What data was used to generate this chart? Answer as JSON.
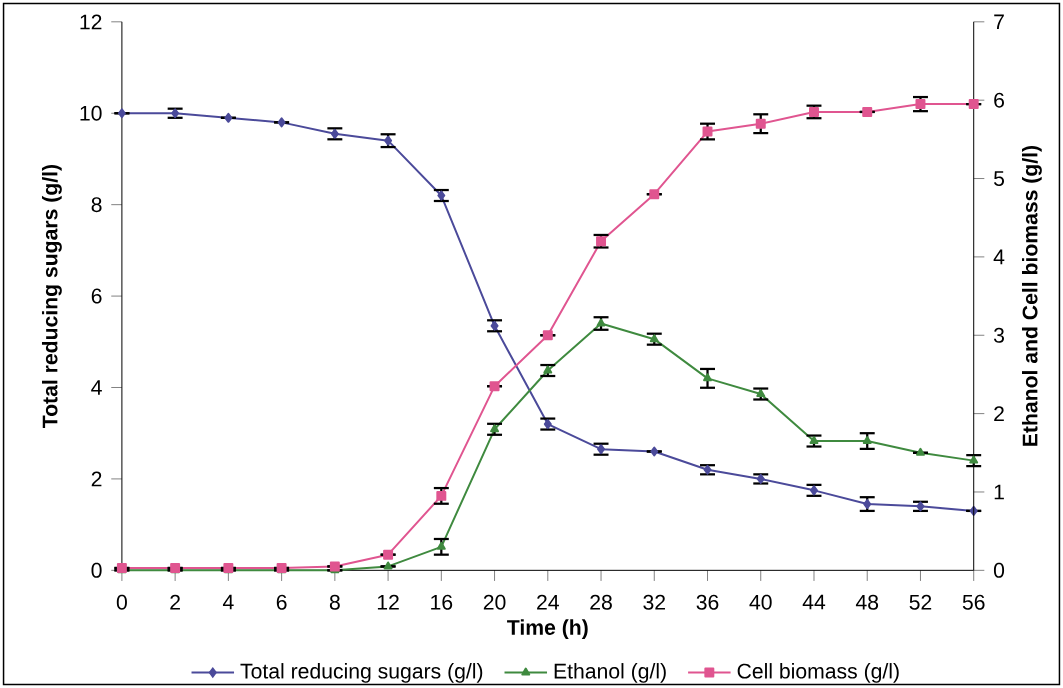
{
  "chart_data": {
    "type": "line",
    "xlabel": "Time (h)",
    "ylabel": "Total reducing sugars (g/l)",
    "y2label": "Ethanol and Cell biomass (g/l)",
    "categories": [
      "0",
      "2",
      "4",
      "6",
      "8",
      "12",
      "16",
      "20",
      "24",
      "28",
      "32",
      "36",
      "40",
      "44",
      "48",
      "52",
      "56"
    ],
    "ylim": [
      0,
      12
    ],
    "yticks": [
      0,
      2,
      4,
      6,
      8,
      10,
      12
    ],
    "y2lim": [
      0,
      7
    ],
    "y2ticks": [
      0,
      1,
      2,
      3,
      4,
      5,
      6,
      7
    ],
    "legend": "bottom",
    "grid": false,
    "series": [
      {
        "name": "Total reducing sugars (g/l)",
        "color": "#4b4a9a",
        "marker": "diamond",
        "values": [
          10,
          10,
          9.9,
          9.8,
          9.55,
          9.4,
          8.2,
          5.35,
          3.2,
          2.65,
          2.6,
          2.2,
          2.0,
          1.75,
          1.45,
          1.4,
          1.3
        ],
        "errors": [
          null,
          0.1,
          null,
          null,
          0.12,
          0.14,
          0.12,
          0.12,
          0.12,
          0.12,
          null,
          0.1,
          0.1,
          0.12,
          0.15,
          0.1,
          null
        ]
      },
      {
        "name": "Ethanol  (g/l)",
        "color": "#3f8a3f",
        "marker": "triangle",
        "axis": "y2",
        "values": [
          0,
          0,
          0,
          0,
          0,
          0.05,
          0.3,
          1.8,
          2.55,
          3.15,
          2.95,
          2.45,
          2.25,
          1.65,
          1.65,
          1.5,
          1.4
        ],
        "errors": [
          null,
          null,
          null,
          null,
          null,
          null,
          0.1,
          0.07,
          0.07,
          0.08,
          0.07,
          0.12,
          0.07,
          0.07,
          0.1,
          null,
          0.07
        ]
      },
      {
        "name": "Cell biomass (g/l)",
        "color": "#e05590",
        "marker": "square",
        "axis": "y2",
        "values": [
          0.03,
          0.03,
          0.03,
          0.03,
          0.05,
          0.2,
          0.95,
          2.35,
          3.0,
          4.2,
          4.8,
          5.6,
          5.7,
          5.85,
          5.85,
          5.95,
          5.95
        ],
        "errors": [
          null,
          null,
          null,
          null,
          null,
          null,
          0.1,
          null,
          null,
          0.08,
          null,
          0.1,
          0.12,
          0.08,
          null,
          0.09,
          null
        ]
      }
    ]
  }
}
